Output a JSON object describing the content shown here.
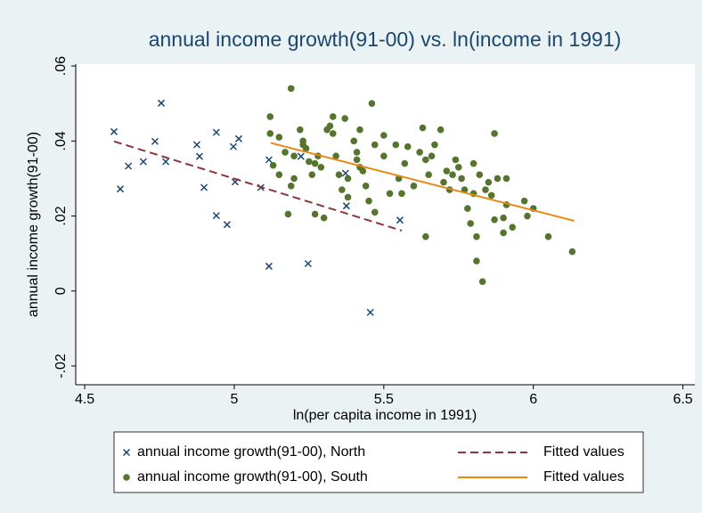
{
  "chart_data": {
    "type": "scatter",
    "title": "annual income growth(91-00) vs. ln(income in 1991)",
    "x_label": "ln(per capita income in 1991)",
    "y_label": "annual income growth(91-00)",
    "xlim": [
      4.47,
      6.54
    ],
    "ylim": [
      -0.025,
      0.0605
    ],
    "xticks": [
      4.5,
      5,
      5.5,
      6,
      6.5
    ],
    "yticks": [
      {
        "value": 0.06,
        "label": ".06"
      },
      {
        "value": 0.04,
        "label": ".04"
      },
      {
        "value": 0.02,
        "label": ".02"
      },
      0,
      {
        "value": -0.02,
        "label": "-.02"
      }
    ],
    "legend": "bottom",
    "series": [
      {
        "name": "annual income growth(91-00), North",
        "mark": "x",
        "color": "#1a476f",
        "x": [
          4.598,
          4.619,
          4.646,
          4.696,
          4.735,
          4.756,
          4.771,
          4.875,
          4.884,
          4.899,
          4.94,
          4.94,
          4.976,
          4.997,
          5.003,
          5.015,
          5.089,
          5.116,
          5.116,
          5.223,
          5.247,
          5.372,
          5.375,
          5.455,
          5.554
        ],
        "values": [
          0.0425,
          0.0272,
          0.0333,
          0.0345,
          0.0399,
          0.0501,
          0.0345,
          0.039,
          0.0359,
          0.0276,
          0.0423,
          0.0201,
          0.0177,
          0.0385,
          0.0291,
          0.0406,
          0.0276,
          0.035,
          0.0066,
          0.0359,
          0.0073,
          0.0314,
          0.0227,
          -0.0057,
          0.0189
        ]
      },
      {
        "name": "Fitted values",
        "mark": "dash",
        "color": "#90353b",
        "x": [
          4.598,
          5.56
        ],
        "values": [
          0.0399,
          0.0161
        ]
      },
      {
        "name": "annual income growth(91-00), South",
        "mark": "circle",
        "color": "#55752f",
        "x": [
          5.19,
          5.12,
          5.12,
          5.13,
          5.15,
          5.15,
          5.17,
          5.18,
          5.19,
          5.2,
          5.2,
          5.22,
          5.23,
          5.23,
          5.24,
          5.25,
          5.26,
          5.27,
          5.27,
          5.28,
          5.29,
          5.3,
          5.31,
          5.32,
          5.33,
          5.33,
          5.34,
          5.35,
          5.36,
          5.37,
          5.38,
          5.38,
          5.4,
          5.41,
          5.41,
          5.42,
          5.42,
          5.43,
          5.44,
          5.45,
          5.46,
          5.47,
          5.47,
          5.5,
          5.5,
          5.52,
          5.54,
          5.55,
          5.56,
          5.57,
          5.58,
          5.6,
          5.62,
          5.63,
          5.64,
          5.64,
          5.65,
          5.66,
          5.67,
          5.69,
          5.7,
          5.71,
          5.72,
          5.73,
          5.74,
          5.75,
          5.76,
          5.77,
          5.78,
          5.79,
          5.8,
          5.8,
          5.81,
          5.81,
          5.82,
          5.83,
          5.84,
          5.85,
          5.86,
          5.87,
          5.87,
          5.88,
          5.9,
          5.9,
          5.91,
          5.91,
          5.93,
          5.97,
          5.98,
          6.0,
          6.05,
          6.13
        ],
        "values": [
          0.054,
          0.0465,
          0.042,
          0.0335,
          0.031,
          0.041,
          0.037,
          0.0205,
          0.028,
          0.03,
          0.036,
          0.043,
          0.04,
          0.039,
          0.038,
          0.0345,
          0.031,
          0.034,
          0.0205,
          0.036,
          0.033,
          0.0195,
          0.043,
          0.044,
          0.042,
          0.0465,
          0.036,
          0.031,
          0.027,
          0.046,
          0.03,
          0.025,
          0.04,
          0.037,
          0.035,
          0.033,
          0.043,
          0.032,
          0.028,
          0.024,
          0.05,
          0.039,
          0.021,
          0.0415,
          0.036,
          0.026,
          0.039,
          0.03,
          0.026,
          0.034,
          0.0385,
          0.028,
          0.037,
          0.0435,
          0.035,
          0.0145,
          0.031,
          0.036,
          0.039,
          0.043,
          0.029,
          0.032,
          0.027,
          0.031,
          0.035,
          0.033,
          0.03,
          0.027,
          0.022,
          0.018,
          0.034,
          0.026,
          0.0145,
          0.008,
          0.031,
          0.0025,
          0.027,
          0.029,
          0.0255,
          0.019,
          0.042,
          0.03,
          0.0155,
          0.0195,
          0.03,
          0.023,
          0.017,
          0.024,
          0.02,
          0.022,
          0.0145,
          0.0105
        ]
      },
      {
        "name": "Fitted values",
        "mark": "solid",
        "color": "#e8880e",
        "x": [
          5.122,
          6.137
        ],
        "values": [
          0.0395,
          0.0187
        ]
      }
    ]
  }
}
